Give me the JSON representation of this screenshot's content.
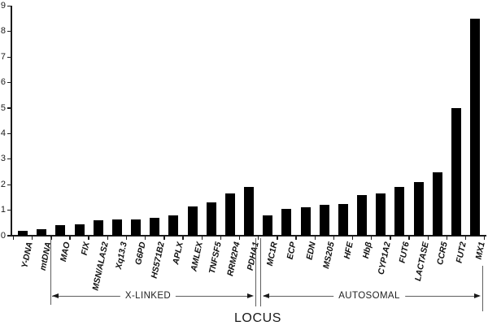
{
  "chart_data": {
    "type": "bar",
    "title": "",
    "xlabel": "LOCUS",
    "ylabel": "",
    "ylim": [
      0,
      9
    ],
    "yticks": [
      0,
      1,
      2,
      3,
      4,
      5,
      6,
      7,
      8,
      9
    ],
    "grid": false,
    "legend": "none",
    "bar_color": "#000000",
    "background_color": "#ffffff",
    "categories": [
      "Y-DNA",
      "mtDNA",
      "MAO",
      "FIX",
      "MSN/ALAS2",
      "Xq13.3",
      "G6PD",
      "HS571B2",
      "APLX",
      "AMLEX",
      "TNFSF5",
      "RRM2P4",
      "PDHA1",
      "MC1R",
      "ECP",
      "EDN",
      "MS205",
      "HFE",
      "Hbβ",
      "CYP1A2",
      "FUT6",
      "LACTASE",
      "CCR5",
      "FUT2",
      "MX1"
    ],
    "values": [
      0.2,
      0.25,
      0.4,
      0.45,
      0.6,
      0.65,
      0.65,
      0.7,
      0.8,
      1.15,
      1.3,
      1.65,
      1.9,
      0.8,
      1.05,
      1.1,
      1.2,
      1.25,
      1.6,
      1.65,
      1.9,
      2.1,
      2.5,
      5.0,
      8.5
    ],
    "groups": [
      {
        "label": "X-LINKED",
        "from": "MAO",
        "to": "PDHA1"
      },
      {
        "label": "AUTOSOMAL",
        "from": "MC1R",
        "to": "MX1"
      }
    ]
  }
}
